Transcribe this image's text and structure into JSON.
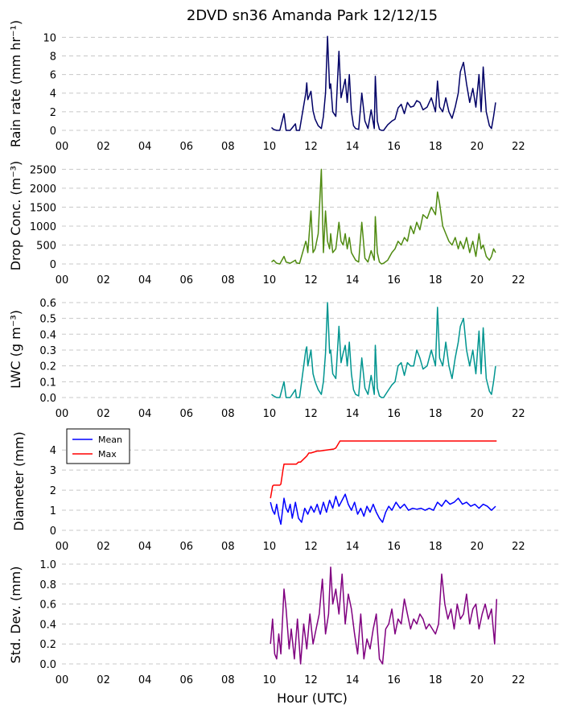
{
  "chart_data": {
    "title": "2DVD sn36 Amanda Park 12/12/15",
    "xlabel": "Hour (UTC)",
    "xlim": [
      0,
      24
    ],
    "xticks": [
      0,
      2,
      4,
      6,
      8,
      10,
      12,
      14,
      16,
      18,
      20,
      22
    ],
    "xtick_labels": [
      "00",
      "02",
      "04",
      "06",
      "08",
      "10",
      "12",
      "14",
      "16",
      "18",
      "20",
      "22"
    ],
    "grid": "horizontal dashed",
    "panels": [
      {
        "type": "line",
        "ylabel": "Rain rate (mm hr⁻¹)",
        "ylim": [
          0,
          10.2
        ],
        "yticks": [
          0,
          2,
          4,
          6,
          8,
          10
        ],
        "series": [
          {
            "color": "#000066",
            "x": [
              10.1,
              10.2,
              10.35,
              10.5,
              10.7,
              10.8,
              11.0,
              11.25,
              11.3,
              11.45,
              11.75,
              11.8,
              11.85,
              12.0,
              12.1,
              12.2,
              12.35,
              12.5,
              12.6,
              12.7,
              12.8,
              12.9,
              12.95,
              13.05,
              13.2,
              13.35,
              13.45,
              13.55,
              13.65,
              13.75,
              13.85,
              13.95,
              14.05,
              14.15,
              14.3,
              14.45,
              14.6,
              14.75,
              14.9,
              15.05,
              15.1,
              15.2,
              15.3,
              15.4,
              15.5,
              15.7,
              15.9,
              16.05,
              16.2,
              16.35,
              16.5,
              16.65,
              16.8,
              16.95,
              17.1,
              17.25,
              17.4,
              17.6,
              17.8,
              18.0,
              18.1,
              18.2,
              18.35,
              18.5,
              18.65,
              18.8,
              18.95,
              19.1,
              19.2,
              19.35,
              19.5,
              19.65,
              19.8,
              19.95,
              20.1,
              20.2,
              20.3,
              20.45,
              20.6,
              20.7,
              20.8,
              20.9
            ],
            "y": [
              0.3,
              0.1,
              0.0,
              0.0,
              1.8,
              0.0,
              0.0,
              0.7,
              0.0,
              0.0,
              4.0,
              5.1,
              3.3,
              4.2,
              2.1,
              1.2,
              0.5,
              0.2,
              1.5,
              4.0,
              10.1,
              4.5,
              5.0,
              2.0,
              1.5,
              8.5,
              3.5,
              4.5,
              5.5,
              3.0,
              6.0,
              2.0,
              0.5,
              0.2,
              0.1,
              4.0,
              1.0,
              0.2,
              2.2,
              0.2,
              5.8,
              1.0,
              0.1,
              0.0,
              0.0,
              0.6,
              1.0,
              1.2,
              2.4,
              2.8,
              1.8,
              3.0,
              2.5,
              2.6,
              3.2,
              3.0,
              2.2,
              2.5,
              3.5,
              2.0,
              5.3,
              2.5,
              2.0,
              3.5,
              2.0,
              1.3,
              2.5,
              4.0,
              6.3,
              7.3,
              5.0,
              3.0,
              4.5,
              2.5,
              6.0,
              2.0,
              6.8,
              2.0,
              0.5,
              0.2,
              1.5,
              3.0
            ]
          }
        ]
      },
      {
        "type": "line",
        "ylabel": "Drop Conc. (m⁻³)",
        "ylim": [
          0,
          2550
        ],
        "yticks": [
          0,
          500,
          1000,
          1500,
          2000,
          2500
        ],
        "series": [
          {
            "color": "#4f8a10",
            "x": [
              10.1,
              10.2,
              10.35,
              10.5,
              10.7,
              10.8,
              11.0,
              11.25,
              11.3,
              11.45,
              11.75,
              11.8,
              11.85,
              12.0,
              12.1,
              12.2,
              12.35,
              12.5,
              12.6,
              12.7,
              12.8,
              12.9,
              12.95,
              13.05,
              13.2,
              13.35,
              13.45,
              13.55,
              13.65,
              13.75,
              13.85,
              13.95,
              14.05,
              14.15,
              14.3,
              14.45,
              14.6,
              14.75,
              14.9,
              15.05,
              15.1,
              15.2,
              15.3,
              15.4,
              15.5,
              15.7,
              15.9,
              16.05,
              16.2,
              16.35,
              16.5,
              16.65,
              16.8,
              16.95,
              17.1,
              17.25,
              17.4,
              17.6,
              17.8,
              18.0,
              18.1,
              18.2,
              18.35,
              18.5,
              18.65,
              18.8,
              18.95,
              19.1,
              19.2,
              19.35,
              19.5,
              19.65,
              19.8,
              19.95,
              20.1,
              20.2,
              20.3,
              20.45,
              20.6,
              20.7,
              20.8,
              20.9
            ],
            "y": [
              50,
              100,
              20,
              0,
              200,
              50,
              20,
              100,
              30,
              10,
              600,
              500,
              300,
              1400,
              300,
              400,
              800,
              2500,
              300,
              1400,
              600,
              400,
              800,
              300,
              400,
              1100,
              600,
              500,
              800,
              400,
              700,
              300,
              200,
              100,
              50,
              1100,
              150,
              50,
              350,
              100,
              1250,
              300,
              50,
              0,
              20,
              100,
              300,
              400,
              600,
              500,
              700,
              600,
              1000,
              800,
              1100,
              900,
              1300,
              1200,
              1500,
              1300,
              1900,
              1600,
              1000,
              800,
              600,
              500,
              700,
              400,
              600,
              400,
              700,
              300,
              600,
              200,
              800,
              400,
              500,
              200,
              100,
              200,
              400,
              300
            ]
          }
        ]
      },
      {
        "type": "line",
        "ylabel": "LWC (g m⁻³)",
        "ylim": [
          0,
          0.61
        ],
        "yticks": [
          0.0,
          0.1,
          0.2,
          0.3,
          0.4,
          0.5,
          0.6
        ],
        "series": [
          {
            "color": "#009590",
            "x": [
              10.1,
              10.2,
              10.35,
              10.5,
              10.7,
              10.8,
              11.0,
              11.25,
              11.3,
              11.45,
              11.75,
              11.8,
              11.85,
              12.0,
              12.1,
              12.2,
              12.35,
              12.5,
              12.6,
              12.7,
              12.8,
              12.9,
              12.95,
              13.05,
              13.2,
              13.35,
              13.45,
              13.55,
              13.65,
              13.75,
              13.85,
              13.95,
              14.05,
              14.15,
              14.3,
              14.45,
              14.6,
              14.75,
              14.9,
              15.05,
              15.1,
              15.2,
              15.3,
              15.4,
              15.5,
              15.7,
              15.9,
              16.05,
              16.2,
              16.35,
              16.5,
              16.65,
              16.8,
              16.95,
              17.1,
              17.25,
              17.4,
              17.6,
              17.8,
              18.0,
              18.1,
              18.2,
              18.35,
              18.5,
              18.65,
              18.8,
              18.95,
              19.1,
              19.2,
              19.35,
              19.5,
              19.65,
              19.8,
              19.95,
              20.1,
              20.2,
              20.3,
              20.45,
              20.6,
              20.7,
              20.8,
              20.9
            ],
            "y": [
              0.02,
              0.01,
              0.0,
              0.0,
              0.1,
              0.0,
              0.0,
              0.05,
              0.0,
              0.0,
              0.3,
              0.32,
              0.2,
              0.3,
              0.15,
              0.1,
              0.05,
              0.02,
              0.1,
              0.28,
              0.6,
              0.28,
              0.3,
              0.15,
              0.12,
              0.45,
              0.22,
              0.28,
              0.33,
              0.2,
              0.35,
              0.15,
              0.05,
              0.02,
              0.01,
              0.25,
              0.06,
              0.02,
              0.14,
              0.02,
              0.33,
              0.06,
              0.01,
              0.0,
              0.0,
              0.04,
              0.08,
              0.1,
              0.2,
              0.22,
              0.14,
              0.22,
              0.2,
              0.2,
              0.3,
              0.25,
              0.18,
              0.2,
              0.3,
              0.2,
              0.57,
              0.25,
              0.2,
              0.35,
              0.2,
              0.12,
              0.25,
              0.35,
              0.45,
              0.5,
              0.3,
              0.2,
              0.3,
              0.15,
              0.42,
              0.15,
              0.44,
              0.12,
              0.04,
              0.02,
              0.1,
              0.2
            ]
          }
        ]
      },
      {
        "type": "line",
        "ylabel": "Diameter (mm)",
        "ylim": [
          0,
          4.85
        ],
        "yticks": [
          0,
          1,
          2,
          3,
          4
        ],
        "legend": {
          "placement": "upper-left",
          "entries": [
            "Mean",
            "Max"
          ]
        },
        "series": [
          {
            "name": "Mean",
            "color": "#0000ff",
            "x": [
              10.05,
              10.15,
              10.25,
              10.35,
              10.45,
              10.55,
              10.7,
              10.8,
              10.9,
              11.0,
              11.1,
              11.25,
              11.4,
              11.55,
              11.7,
              11.85,
              12.0,
              12.15,
              12.3,
              12.45,
              12.6,
              12.75,
              12.9,
              13.05,
              13.2,
              13.35,
              13.5,
              13.65,
              13.8,
              13.95,
              14.1,
              14.25,
              14.4,
              14.55,
              14.7,
              14.85,
              15.0,
              15.15,
              15.3,
              15.45,
              15.6,
              15.75,
              15.9,
              16.1,
              16.3,
              16.5,
              16.7,
              16.9,
              17.1,
              17.3,
              17.5,
              17.7,
              17.9,
              18.1,
              18.3,
              18.5,
              18.7,
              18.9,
              19.1,
              19.3,
              19.5,
              19.7,
              19.9,
              20.1,
              20.3,
              20.5,
              20.7,
              20.9
            ],
            "y": [
              1.4,
              1.0,
              0.8,
              1.3,
              0.7,
              0.3,
              1.6,
              1.1,
              0.9,
              1.3,
              0.6,
              1.4,
              0.6,
              0.4,
              1.1,
              0.8,
              1.2,
              0.9,
              1.3,
              0.8,
              1.4,
              0.9,
              1.5,
              1.1,
              1.7,
              1.2,
              1.5,
              1.8,
              1.3,
              1.0,
              1.4,
              0.8,
              1.1,
              0.7,
              1.2,
              0.9,
              1.3,
              0.9,
              0.6,
              0.4,
              0.9,
              1.2,
              1.0,
              1.4,
              1.1,
              1.3,
              1.0,
              1.1,
              1.05,
              1.1,
              1.0,
              1.1,
              1.0,
              1.4,
              1.2,
              1.5,
              1.3,
              1.4,
              1.6,
              1.3,
              1.4,
              1.2,
              1.3,
              1.1,
              1.3,
              1.2,
              1.0,
              1.2
            ]
          },
          {
            "name": "Max",
            "color": "#ff0000",
            "x": [
              10.05,
              10.15,
              10.2,
              10.5,
              10.55,
              10.65,
              10.7,
              11.3,
              11.4,
              11.5,
              11.8,
              11.9,
              12.0,
              12.3,
              12.4,
              13.1,
              13.2,
              13.4,
              15.3,
              15.35,
              20.95
            ],
            "y": [
              1.6,
              2.2,
              2.25,
              2.25,
              2.3,
              3.0,
              3.3,
              3.3,
              3.4,
              3.4,
              3.7,
              3.85,
              3.85,
              3.95,
              3.95,
              4.05,
              4.1,
              4.45,
              4.45,
              4.45,
              4.45
            ]
          }
        ]
      },
      {
        "type": "line",
        "ylabel": "Std. Dev. (mm)",
        "ylim": [
          0,
          1.0
        ],
        "yticks": [
          0.0,
          0.2,
          0.4,
          0.6,
          0.8,
          1.0
        ],
        "series": [
          {
            "color": "#800080",
            "x": [
              10.05,
              10.15,
              10.25,
              10.35,
              10.45,
              10.55,
              10.7,
              10.8,
              10.95,
              11.05,
              11.2,
              11.35,
              11.5,
              11.65,
              11.8,
              11.95,
              12.1,
              12.25,
              12.4,
              12.55,
              12.7,
              12.85,
              12.95,
              13.05,
              13.2,
              13.35,
              13.5,
              13.65,
              13.8,
              13.95,
              14.1,
              14.25,
              14.4,
              14.55,
              14.7,
              14.85,
              15.0,
              15.15,
              15.3,
              15.45,
              15.6,
              15.75,
              15.9,
              16.05,
              16.2,
              16.35,
              16.5,
              16.65,
              16.8,
              16.95,
              17.1,
              17.25,
              17.4,
              17.55,
              17.7,
              17.85,
              18.0,
              18.15,
              18.3,
              18.45,
              18.6,
              18.75,
              18.9,
              19.05,
              19.2,
              19.35,
              19.5,
              19.65,
              19.8,
              19.95,
              20.1,
              20.25,
              20.4,
              20.55,
              20.7,
              20.85,
              20.95
            ],
            "y": [
              0.2,
              0.45,
              0.1,
              0.05,
              0.3,
              0.1,
              0.75,
              0.55,
              0.15,
              0.35,
              0.05,
              0.45,
              0.0,
              0.4,
              0.15,
              0.5,
              0.2,
              0.35,
              0.5,
              0.85,
              0.3,
              0.5,
              0.97,
              0.6,
              0.75,
              0.5,
              0.9,
              0.4,
              0.7,
              0.55,
              0.3,
              0.1,
              0.5,
              0.05,
              0.25,
              0.15,
              0.35,
              0.5,
              0.05,
              0.0,
              0.35,
              0.4,
              0.55,
              0.3,
              0.45,
              0.4,
              0.65,
              0.5,
              0.35,
              0.45,
              0.4,
              0.5,
              0.45,
              0.35,
              0.4,
              0.35,
              0.3,
              0.4,
              0.9,
              0.6,
              0.45,
              0.55,
              0.35,
              0.6,
              0.45,
              0.5,
              0.7,
              0.4,
              0.55,
              0.6,
              0.35,
              0.5,
              0.6,
              0.45,
              0.55,
              0.2,
              0.65
            ]
          }
        ]
      }
    ]
  }
}
